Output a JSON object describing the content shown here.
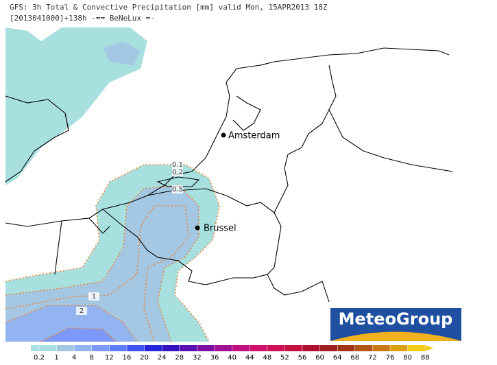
{
  "header": {
    "title": "GFS: 3h Total & Convective Precipitation [mm] valid Mon, 15APR2013 18Z",
    "subtitle": "[2013041000]+138h -== BeNeLux =-"
  },
  "cities": [
    {
      "label": "Amsterdam"
    },
    {
      "label": "Brussel"
    }
  ],
  "contours": [
    0.1,
    0.2,
    0.5,
    1,
    2
  ],
  "legend": {
    "ticks": [
      0.2,
      1,
      4,
      8,
      12,
      16,
      20,
      24,
      28,
      32,
      36,
      40,
      44,
      48,
      52,
      56,
      60,
      64,
      68,
      72,
      76,
      80,
      88
    ],
    "colors": [
      "#a8e0e0",
      "#a4c8e4",
      "#92b4f0",
      "#7c98f8",
      "#5c7cf8",
      "#3c54f0",
      "#2424dc",
      "#3414c0",
      "#5a10b0",
      "#7c10a4",
      "#a01094",
      "#c01080",
      "#d0106c",
      "#d01054",
      "#c41040",
      "#b01030",
      "#a02020",
      "#a03414",
      "#b45414",
      "#c87814",
      "#dca014",
      "#f0cc14"
    ]
  },
  "logo": "MeteoGroup"
}
